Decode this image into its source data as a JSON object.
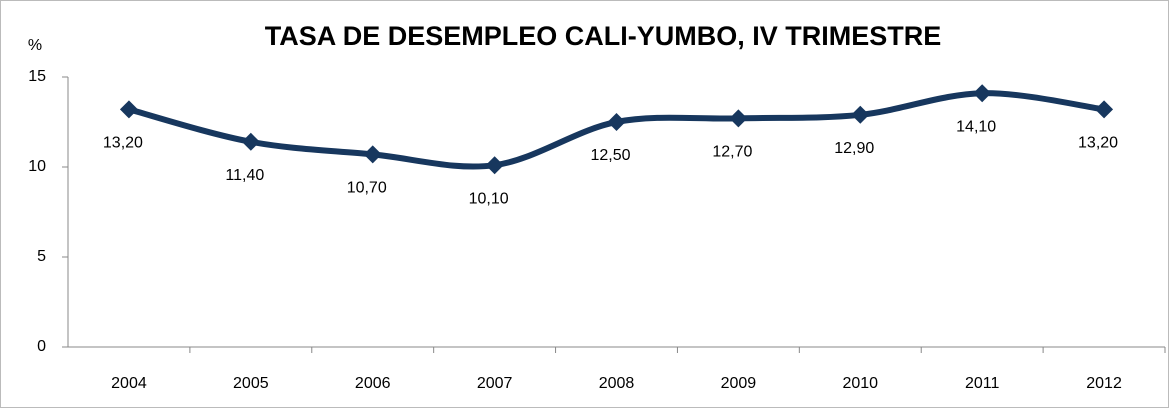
{
  "chart_data": {
    "type": "line",
    "title": "TASA DE DESEMPLEO CALI-YUMBO, IV TRIMESTRE",
    "y_label": "%",
    "categories": [
      "2004",
      "2005",
      "2006",
      "2007",
      "2008",
      "2009",
      "2010",
      "2011",
      "2012"
    ],
    "series": [
      {
        "name": "Tasa de desempleo",
        "color": "#17375e",
        "values": [
          13.2,
          11.4,
          10.7,
          10.1,
          12.5,
          12.7,
          12.9,
          14.1,
          13.2
        ],
        "value_labels": [
          "13,20",
          "11,40",
          "10,70",
          "10,10",
          "12,50",
          "12,70",
          "12,90",
          "14,10",
          "13,20"
        ]
      }
    ],
    "ylim": [
      0,
      15
    ],
    "yticks": [
      0,
      5,
      10,
      15
    ],
    "grid": false,
    "smooth": true,
    "legend": false
  }
}
